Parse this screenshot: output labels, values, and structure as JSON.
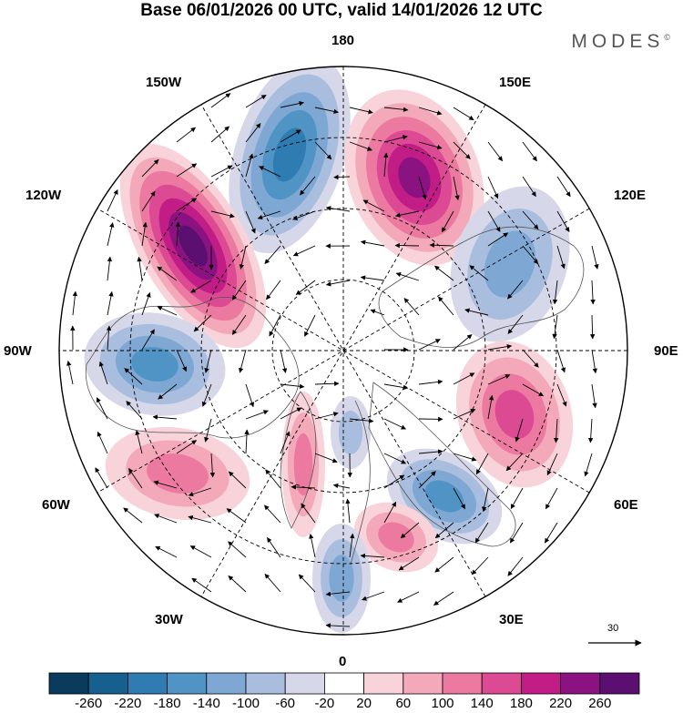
{
  "title": "Base 06/01/2026 00 UTC, valid 14/01/2026 12 UTC",
  "brand": {
    "name": "MODES",
    "mark": "©"
  },
  "longitude_labels": {
    "lon_180": "180",
    "lon_150e": "150E",
    "lon_120e": "120E",
    "lon_90e": "90E",
    "lon_60e": "60E",
    "lon_30e": "30E",
    "lon_0": "0",
    "lon_30w": "30W",
    "lon_60w": "60W",
    "lon_90w": "90W",
    "lon_120w": "120W",
    "lon_150w": "150W"
  },
  "wind_reference": {
    "label": "30"
  },
  "colorbar": {
    "ticks": [
      "-260",
      "-220",
      "-180",
      "-140",
      "-100",
      "-60",
      "-20",
      "20",
      "60",
      "100",
      "140",
      "180",
      "220",
      "260"
    ],
    "colors": [
      "#0a3a5c",
      "#165f8f",
      "#2f7cb3",
      "#4f94c4",
      "#7ea8d3",
      "#a9bede",
      "#d6d8ea",
      "#ffffff",
      "#f9d3da",
      "#f4a9bb",
      "#ec7aa0",
      "#dd4a94",
      "#c21d87",
      "#8b1381",
      "#5b0f70"
    ]
  },
  "anomalies": [
    {
      "name": "neg-pacific-north",
      "value": -200
    },
    {
      "name": "pos-kamchatka",
      "value": 220
    },
    {
      "name": "pos-alaska-canada",
      "value": 260
    },
    {
      "name": "neg-siberia-east",
      "value": -120
    },
    {
      "name": "neg-hudson",
      "value": -160
    },
    {
      "name": "pos-siberia-central",
      "value": 140
    },
    {
      "name": "neg-barents",
      "value": -140
    },
    {
      "name": "pos-north-atlantic-west",
      "value": 100
    },
    {
      "name": "pos-greenland-sea",
      "value": 120
    },
    {
      "name": "pos-scandinavia",
      "value": 100
    },
    {
      "name": "neg-iceland",
      "value": -100
    },
    {
      "name": "neg-europe-west",
      "value": -60
    }
  ]
}
